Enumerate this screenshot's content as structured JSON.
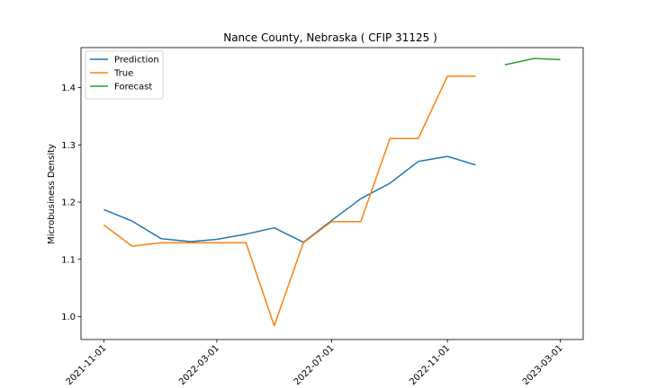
{
  "chart_data": {
    "type": "line",
    "title": "Nance County, Nebraska ( CFIP 31125 )",
    "xlabel": "",
    "ylabel": "Microbusiness Density",
    "x_ticks": [
      "2021-11-01",
      "2022-03-01",
      "2022-07-01",
      "2022-11-01",
      "2023-03-01"
    ],
    "y_ticks": [
      "1.0",
      "1.1",
      "1.2",
      "1.3",
      "1.4"
    ],
    "ylim": [
      0.96,
      1.47
    ],
    "grid": false,
    "legend_position": "top-left",
    "series": [
      {
        "name": "Prediction",
        "color": "#1f77b4",
        "x": [
          "2021-11-01",
          "2021-12-01",
          "2022-01-01",
          "2022-02-01",
          "2022-03-01",
          "2022-04-01",
          "2022-05-01",
          "2022-06-01",
          "2022-07-01",
          "2022-08-01",
          "2022-09-01",
          "2022-10-01",
          "2022-11-01",
          "2022-12-01"
        ],
        "y": [
          1.187,
          1.167,
          1.136,
          1.131,
          1.135,
          1.144,
          1.155,
          1.13,
          1.168,
          1.206,
          1.233,
          1.271,
          1.28,
          1.265
        ]
      },
      {
        "name": "True",
        "color": "#ff7f0e",
        "x": [
          "2021-11-01",
          "2021-12-01",
          "2022-01-01",
          "2022-02-01",
          "2022-03-01",
          "2022-04-01",
          "2022-05-01",
          "2022-06-01",
          "2022-07-01",
          "2022-08-01",
          "2022-09-01",
          "2022-10-01",
          "2022-11-01",
          "2022-12-01"
        ],
        "y": [
          1.16,
          1.123,
          1.129,
          1.129,
          1.129,
          1.129,
          0.984,
          1.129,
          1.166,
          1.166,
          1.311,
          1.311,
          1.42,
          1.42
        ]
      },
      {
        "name": "Forecast",
        "color": "#2ca02c",
        "x": [
          "2023-01-01",
          "2023-02-01",
          "2023-03-01"
        ],
        "y": [
          1.44,
          1.451,
          1.449
        ]
      }
    ]
  }
}
